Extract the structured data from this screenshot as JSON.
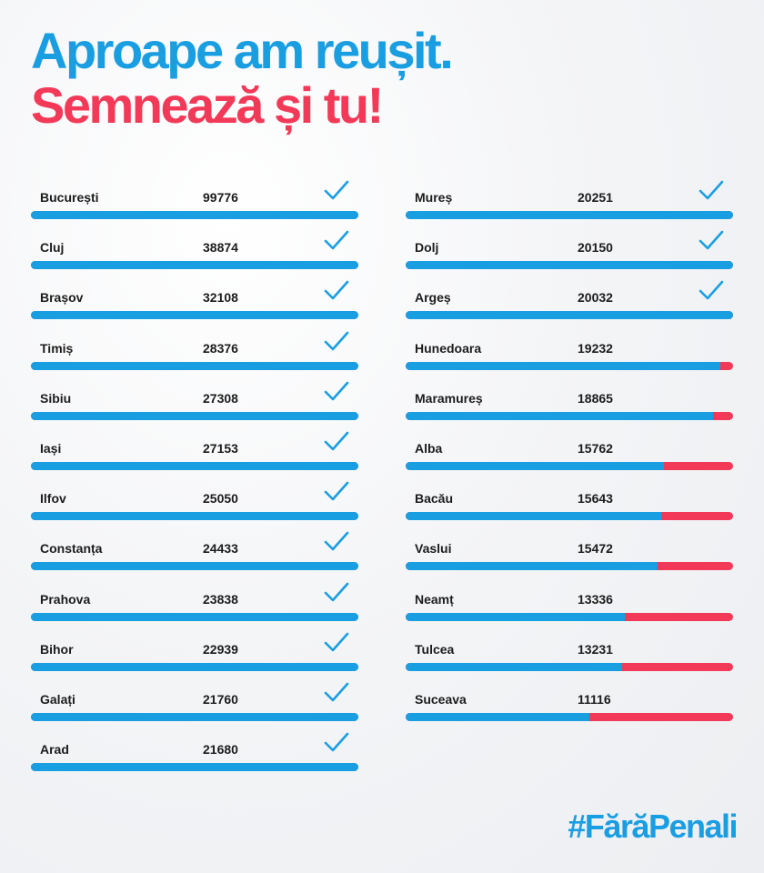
{
  "headline": {
    "line1": "Aproape am reușit.",
    "line2": "Semnează și tu!"
  },
  "hashtag": "#FărăPenali",
  "colors": {
    "blue": "#1a9ee2",
    "red": "#f23a58",
    "text": "#1c1c1c"
  },
  "left_column": [
    {
      "county": "București",
      "signatures": "99776",
      "progress": 1.0,
      "checked": true
    },
    {
      "county": "Cluj",
      "signatures": "38874",
      "progress": 1.0,
      "checked": true
    },
    {
      "county": "Brașov",
      "signatures": "32108",
      "progress": 1.0,
      "checked": true
    },
    {
      "county": "Timiș",
      "signatures": "28376",
      "progress": 1.0,
      "checked": true
    },
    {
      "county": "Sibiu",
      "signatures": "27308",
      "progress": 1.0,
      "checked": true
    },
    {
      "county": "Iași",
      "signatures": "27153",
      "progress": 1.0,
      "checked": true
    },
    {
      "county": "Ilfov",
      "signatures": "25050",
      "progress": 1.0,
      "checked": true
    },
    {
      "county": "Constanța",
      "signatures": "24433",
      "progress": 1.0,
      "checked": true
    },
    {
      "county": "Prahova",
      "signatures": "23838",
      "progress": 1.0,
      "checked": true
    },
    {
      "county": "Bihor",
      "signatures": "22939",
      "progress": 1.0,
      "checked": true
    },
    {
      "county": "Galați",
      "signatures": "21760",
      "progress": 1.0,
      "checked": true
    },
    {
      "county": "Arad",
      "signatures": "21680",
      "progress": 1.0,
      "checked": true
    }
  ],
  "right_column": [
    {
      "county": "Mureș",
      "signatures": "20251",
      "progress": 1.0,
      "checked": true
    },
    {
      "county": "Dolj",
      "signatures": "20150",
      "progress": 1.0,
      "checked": true
    },
    {
      "county": "Argeș",
      "signatures": "20032",
      "progress": 1.0,
      "checked": true
    },
    {
      "county": "Hunedoara",
      "signatures": "19232",
      "progress": 0.96,
      "checked": false
    },
    {
      "county": "Maramureș",
      "signatures": "18865",
      "progress": 0.94,
      "checked": false
    },
    {
      "county": "Alba",
      "signatures": "15762",
      "progress": 0.79,
      "checked": false
    },
    {
      "county": "Bacău",
      "signatures": "15643",
      "progress": 0.78,
      "checked": false
    },
    {
      "county": "Vaslui",
      "signatures": "15472",
      "progress": 0.77,
      "checked": false
    },
    {
      "county": "Neamț",
      "signatures": "13336",
      "progress": 0.67,
      "checked": false
    },
    {
      "county": "Tulcea",
      "signatures": "13231",
      "progress": 0.66,
      "checked": false
    },
    {
      "county": "Suceava",
      "signatures": "11116",
      "progress": 0.56,
      "checked": false
    }
  ]
}
